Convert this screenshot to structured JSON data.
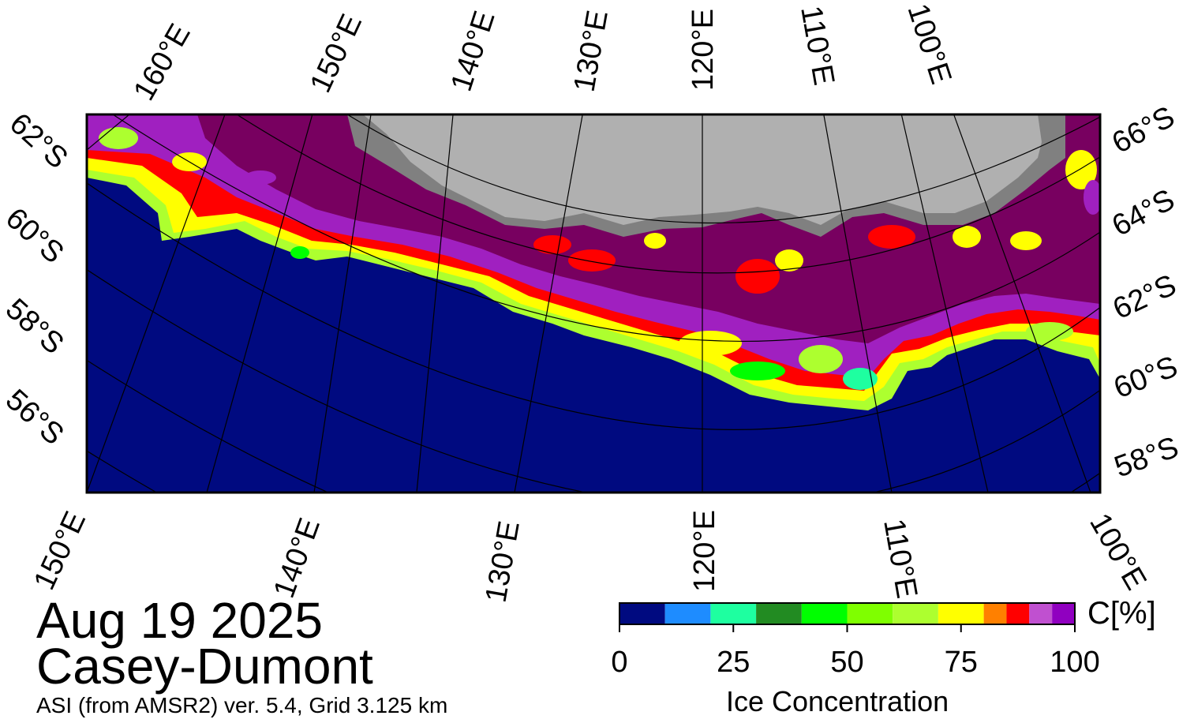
{
  "title": {
    "date": "Aug 19 2025",
    "region": "Casey-Dumont",
    "source": "ASI (from AMSR2) ver. 5.4,  Grid 3.125 km"
  },
  "map_labels": {
    "top": [
      "160°E",
      "150°E",
      "140°E",
      "130°E",
      "120°E",
      "110°E",
      "100°E"
    ],
    "bottom": [
      "150°E",
      "140°E",
      "130°E",
      "120°E",
      "110°E",
      "100°E"
    ],
    "left": [
      "62°S",
      "60°S",
      "58°S",
      "56°S"
    ],
    "right": [
      "66°S",
      "64°S",
      "62°S",
      "60°S",
      "58°S"
    ]
  },
  "colors": {
    "ocean": "#000a80",
    "land": "#b0b0b0",
    "land_shadow": "#808080",
    "ice_high": "#780060",
    "ice_purple": "#a020c0"
  },
  "colorbar": {
    "label": "Ice Concentration",
    "unit": "C[%]",
    "ticks": [
      "0",
      "25",
      "50",
      "75",
      "100"
    ],
    "bins": [
      {
        "range": "0-10",
        "color": "#000a80"
      },
      {
        "range": "10-20",
        "color": "#1e8cff"
      },
      {
        "range": "20-30",
        "color": "#1effa0"
      },
      {
        "range": "30-40",
        "color": "#228b22"
      },
      {
        "range": "40-50",
        "color": "#00ff00"
      },
      {
        "range": "50-60",
        "color": "#7fff00"
      },
      {
        "range": "60-70",
        "color": "#adff2f"
      },
      {
        "range": "70-80",
        "color": "#ffff00"
      },
      {
        "range": "80-85",
        "color": "#ff8000"
      },
      {
        "range": "85-90",
        "color": "#ff0000"
      },
      {
        "range": "90-95",
        "color": "#c050d0"
      },
      {
        "range": "95-100",
        "color": "#9000c0"
      }
    ]
  }
}
